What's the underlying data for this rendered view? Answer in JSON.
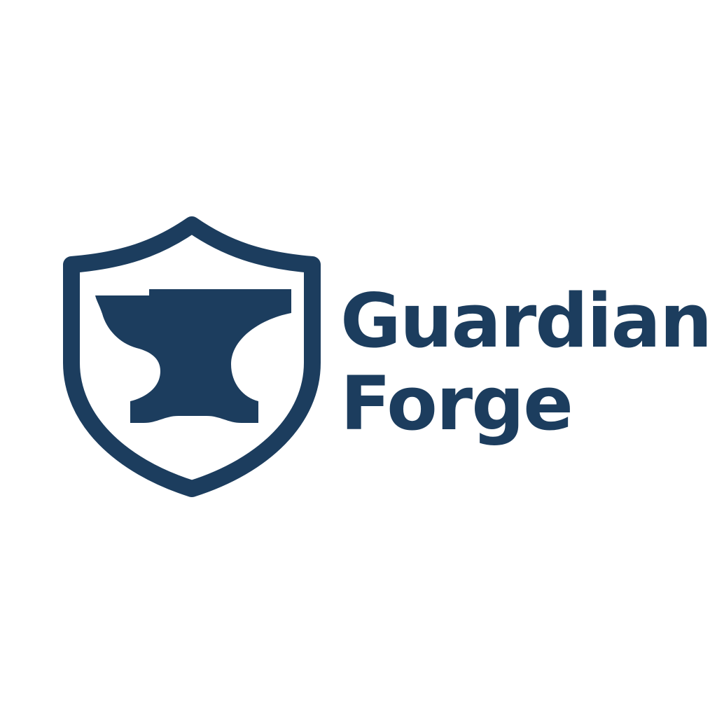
{
  "brand": {
    "line1": "Guardian",
    "line2": "Forge",
    "color": "#1c3d5e",
    "background": "#ffffff"
  },
  "emblem": {
    "outer_shape": "shield-icon",
    "inner_shape": "anvil-icon"
  }
}
